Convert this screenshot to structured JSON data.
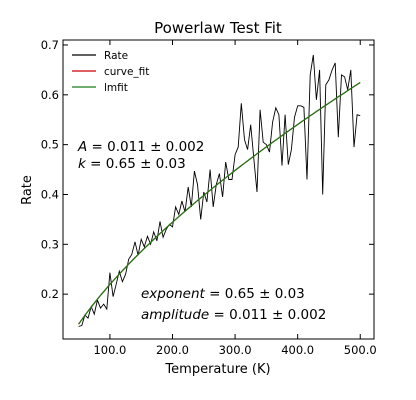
{
  "chart_data": {
    "type": "line",
    "title": "Powerlaw Test Fit",
    "xlabel": "Temperature (K)",
    "ylabel": "Rate",
    "xlim": [
      25,
      522
    ],
    "ylim": [
      0.11,
      0.71
    ],
    "xticks": [
      100,
      200,
      300,
      400,
      500
    ],
    "xtick_labels": [
      "100.0",
      "200.0",
      "300.0",
      "400.0",
      "500.0"
    ],
    "yticks": [
      0.2,
      0.3,
      0.4,
      0.5,
      0.6,
      0.7
    ],
    "ytick_labels": [
      "0.2",
      "0.3",
      "0.4",
      "0.5",
      "0.6",
      "0.7"
    ],
    "legend_position": "top-left",
    "grid": false,
    "series": [
      {
        "name": "Rate",
        "color": "#000000",
        "x": [
          50,
          55,
          60,
          65,
          70,
          75,
          80,
          85,
          90,
          95,
          100,
          105,
          110,
          115,
          120,
          125,
          130,
          135,
          140,
          145,
          150,
          155,
          160,
          165,
          170,
          175,
          180,
          185,
          190,
          195,
          200,
          205,
          210,
          215,
          220,
          225,
          230,
          235,
          240,
          245,
          250,
          255,
          260,
          265,
          270,
          275,
          280,
          285,
          290,
          295,
          300,
          305,
          310,
          315,
          320,
          325,
          330,
          335,
          340,
          345,
          350,
          355,
          360,
          365,
          370,
          375,
          380,
          385,
          390,
          395,
          400,
          405,
          410,
          415,
          420,
          425,
          430,
          435,
          440,
          445,
          450,
          455,
          460,
          465,
          470,
          475,
          480,
          485,
          490,
          495,
          500
        ],
        "y": [
          0.135,
          0.137,
          0.158,
          0.152,
          0.175,
          0.16,
          0.188,
          0.172,
          0.18,
          0.17,
          0.243,
          0.195,
          0.22,
          0.246,
          0.225,
          0.24,
          0.27,
          0.28,
          0.305,
          0.278,
          0.31,
          0.295,
          0.316,
          0.3,
          0.325,
          0.307,
          0.346,
          0.314,
          0.33,
          0.34,
          0.335,
          0.375,
          0.36,
          0.387,
          0.365,
          0.415,
          0.375,
          0.447,
          0.42,
          0.35,
          0.405,
          0.385,
          0.45,
          0.375,
          0.42,
          0.442,
          0.395,
          0.465,
          0.43,
          0.43,
          0.48,
          0.495,
          0.583,
          0.51,
          0.49,
          0.54,
          0.47,
          0.405,
          0.57,
          0.505,
          0.5,
          0.485,
          0.545,
          0.574,
          0.56,
          0.458,
          0.56,
          0.46,
          0.49,
          0.555,
          0.578,
          0.578,
          0.575,
          0.43,
          0.64,
          0.68,
          0.59,
          0.65,
          0.4,
          0.62,
          0.63,
          0.65,
          0.664,
          0.515,
          0.64,
          0.636,
          0.61,
          0.65,
          0.495,
          0.56,
          0.558
        ]
      },
      {
        "name": "curve_fit",
        "color": "#cc0000",
        "model": "A * x^k",
        "params": {
          "A": 0.011,
          "k": 0.65
        }
      },
      {
        "name": "lmfit",
        "color": "#1a7a1a",
        "model": "amplitude * x^exponent",
        "params": {
          "amplitude": 0.011,
          "exponent": 0.65
        }
      }
    ],
    "annotations": [
      {
        "symbol": "A",
        "text": " = 0.011 ± 0.002"
      },
      {
        "symbol": "k",
        "text": " = 0.65 ± 0.03"
      },
      {
        "symbol": "exponent",
        "text": " = 0.65 ± 0.03"
      },
      {
        "symbol": "amplitude",
        "text": " = 0.011 ± 0.002"
      }
    ]
  }
}
